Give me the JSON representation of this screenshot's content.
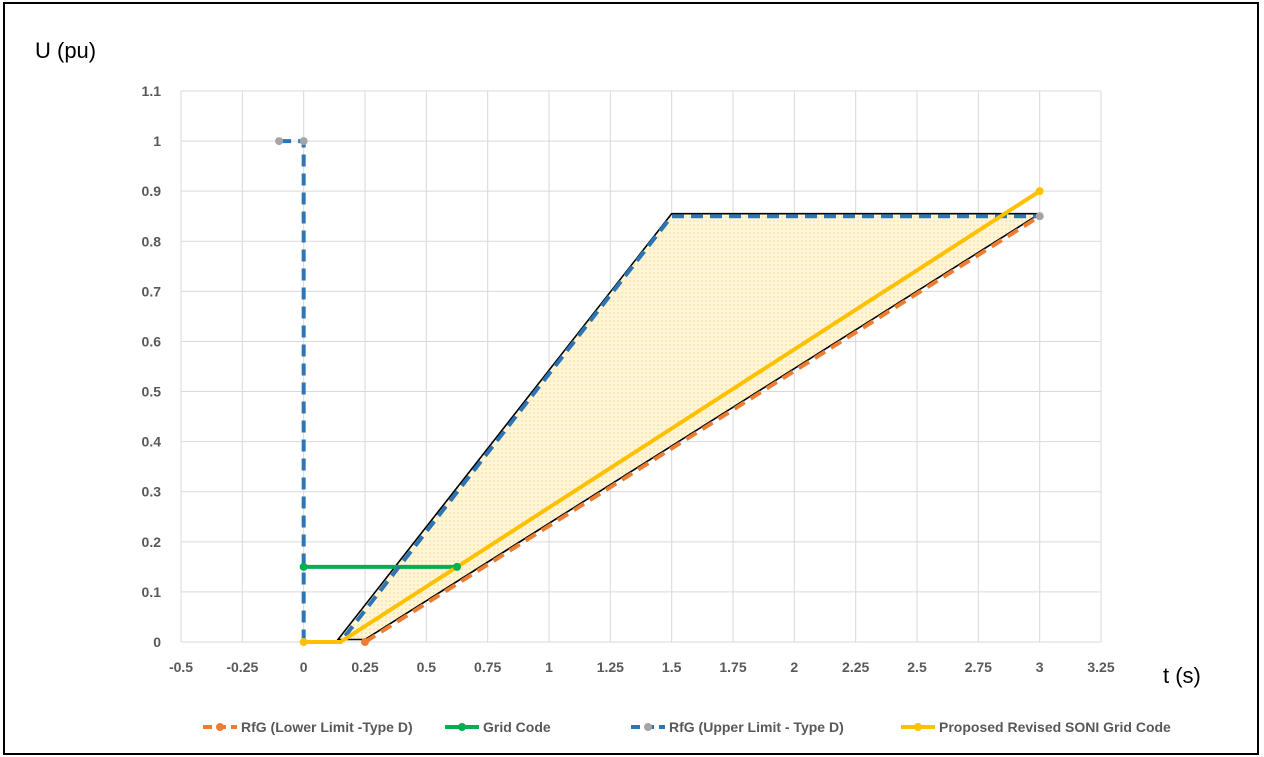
{
  "chart_data": {
    "type": "line",
    "ylabel": "U (pu)",
    "xlabel": "t (s)",
    "xlim": [
      -0.5,
      3.25
    ],
    "ylim": [
      0,
      1.1
    ],
    "x_ticks": [
      -0.5,
      -0.25,
      0,
      0.25,
      0.5,
      0.75,
      1,
      1.25,
      1.5,
      1.75,
      2,
      2.25,
      2.5,
      2.75,
      3,
      3.25
    ],
    "x_tick_labels": [
      "-0.5",
      "-0.25",
      "0",
      "0.25",
      "0.5",
      "0.75",
      "1",
      "1.25",
      "1.5",
      "1.75",
      "2",
      "2.25",
      "2.5",
      "2.75",
      "3",
      "3.25"
    ],
    "y_ticks": [
      0,
      0.1,
      0.2,
      0.3,
      0.4,
      0.5,
      0.6,
      0.7,
      0.8,
      0.9,
      1,
      1.1
    ],
    "y_tick_labels": [
      "0",
      "0.1",
      "0.2",
      "0.3",
      "0.4",
      "0.5",
      "0.6",
      "0.7",
      "0.8",
      "0.9",
      "1",
      "1.1"
    ],
    "grid": true,
    "legend_position": "bottom",
    "series": [
      {
        "name": "RfG (Lower Limit -Type D)",
        "color": "#ED7D31",
        "dash": true,
        "points": [
          [
            0.25,
            0
          ],
          [
            3,
            0.85
          ]
        ]
      },
      {
        "name": "Grid Code",
        "color": "#00B050",
        "dash": false,
        "points": [
          [
            0,
            0.15
          ],
          [
            0.625,
            0.15
          ]
        ]
      },
      {
        "name": "RfG (Upper Limit - Type D)",
        "color": "#2E75B6",
        "marker_color": "#A5A5A5",
        "dash": true,
        "points": [
          [
            -0.1,
            1
          ],
          [
            0,
            1
          ],
          [
            0,
            0
          ],
          [
            0.15,
            0
          ],
          [
            1.5,
            0.85
          ],
          [
            3,
            0.85
          ]
        ]
      },
      {
        "name": "Proposed Revised SONI Grid Code",
        "color": "#FFC000",
        "dash": false,
        "points": [
          [
            0,
            0
          ],
          [
            0.15,
            0
          ],
          [
            3,
            0.9
          ]
        ]
      }
    ],
    "annotations": [
      {
        "type": "shaded-region",
        "fill": "#FFF2CC",
        "outline": "#000000",
        "points": [
          [
            0.14,
            0.005
          ],
          [
            1.5,
            0.855
          ],
          [
            3,
            0.855
          ],
          [
            0.25,
            0.005
          ]
        ]
      }
    ]
  }
}
